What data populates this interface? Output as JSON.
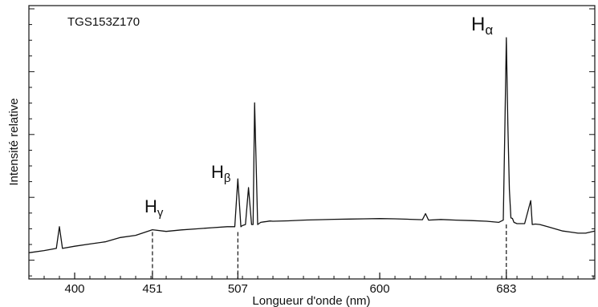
{
  "chart_data": {
    "type": "line",
    "title": "TGS153Z170",
    "xlabel": "Longueur d'onde (nm)",
    "ylabel": "Intensité relative",
    "xlim": [
      370,
      741
    ],
    "ylim": [
      0,
      100
    ],
    "grid": false,
    "y_tick_labels": false,
    "x_ticks": [
      {
        "value": 400,
        "label": "400"
      },
      {
        "value": 451,
        "label": "451"
      },
      {
        "value": 507,
        "label": "507"
      },
      {
        "value": 600,
        "label": "600"
      },
      {
        "value": 683,
        "label": "683"
      }
    ],
    "annotations": [
      {
        "base": "H",
        "sub": "γ",
        "x": 451,
        "peak_y": 11.6
      },
      {
        "base": "H",
        "sub": "β",
        "x": 507,
        "peak_y": 35
      },
      {
        "base": "H",
        "sub": "α",
        "x": 683,
        "peak_y": 100
      }
    ],
    "series": [
      {
        "x": [
          370,
          380,
          388,
          390,
          392,
          400,
          410,
          420,
          430,
          440,
          451,
          460,
          470,
          480,
          490,
          500,
          504,
          505,
          507,
          509,
          510,
          512,
          514,
          516,
          517,
          518,
          520,
          522,
          524,
          526,
          528,
          530,
          540,
          550,
          560,
          570,
          580,
          590,
          600,
          610,
          620,
          628,
          630,
          632,
          640,
          650,
          660,
          670,
          678,
          681,
          682,
          683,
          684,
          685,
          686,
          687,
          688,
          690,
          695,
          699,
          700,
          702,
          705,
          710,
          715,
          720,
          725,
          730,
          735,
          741
        ],
        "y": [
          1,
          2,
          3,
          13,
          3,
          4,
          5,
          6,
          8,
          9,
          11.6,
          10.8,
          11.5,
          12,
          12.5,
          13,
          13,
          13,
          35,
          13,
          13.5,
          14,
          31,
          14,
          14,
          70,
          14,
          15,
          15.2,
          15.4,
          15.6,
          15.5,
          15.7,
          16,
          16.2,
          16.4,
          16.5,
          16.6,
          16.7,
          16.6,
          16.4,
          16.2,
          19,
          16,
          16.3,
          16,
          15.8,
          15.5,
          15,
          16,
          57,
          100,
          60,
          30,
          17,
          16.8,
          15,
          14.4,
          14.4,
          25,
          14,
          14.2,
          14,
          13,
          12,
          11,
          10.5,
          10,
          10,
          11
        ]
      }
    ]
  }
}
